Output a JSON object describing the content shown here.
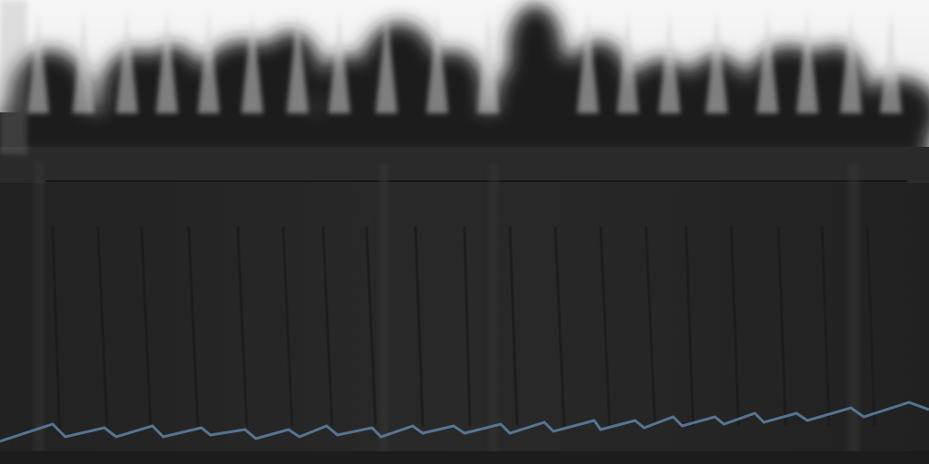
{
  "image": {
    "caption": "",
    "colors": {
      "sky": "#f2f2f2",
      "foliage": "#1e1e1e",
      "fence_board": "#262626",
      "fence_board_light": "#2d2d2d",
      "rail": "#2a2a2a",
      "ground": "#1c1c1c",
      "wire": "#5f83a6"
    },
    "icons": [
      "picket-tip-icon"
    ]
  }
}
